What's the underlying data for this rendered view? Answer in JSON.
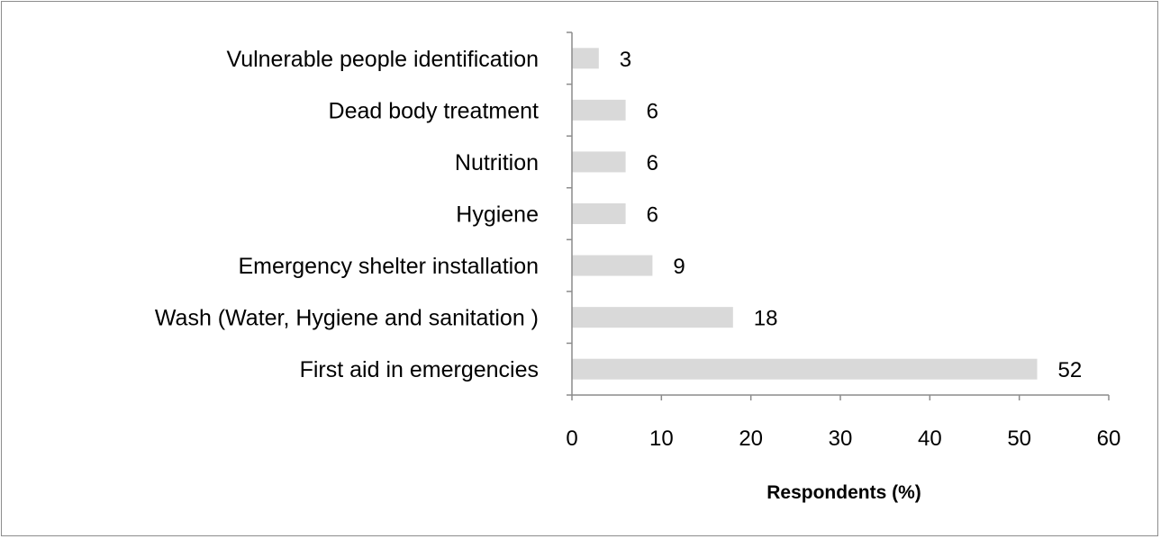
{
  "chart_data": {
    "type": "bar",
    "orientation": "horizontal",
    "categories": [
      "Vulnerable people identification",
      "Dead body treatment",
      "Nutrition",
      "Hygiene",
      "Emergency shelter installation",
      "Wash (Water, Hygiene and sanitation  )",
      "First aid in emergencies"
    ],
    "values": [
      3,
      6,
      6,
      6,
      9,
      18,
      52
    ],
    "data_labels": [
      "3",
      "6",
      "6",
      "6",
      "9",
      "18",
      "52"
    ],
    "xlabel": "Respondents (%)",
    "ylabel": "",
    "xlim": [
      0,
      60
    ],
    "x_ticks": [
      "0",
      "10",
      "20",
      "30",
      "40",
      "50",
      "60"
    ],
    "grid": false,
    "legend": "none",
    "bar_color": "#d9d9d9"
  }
}
